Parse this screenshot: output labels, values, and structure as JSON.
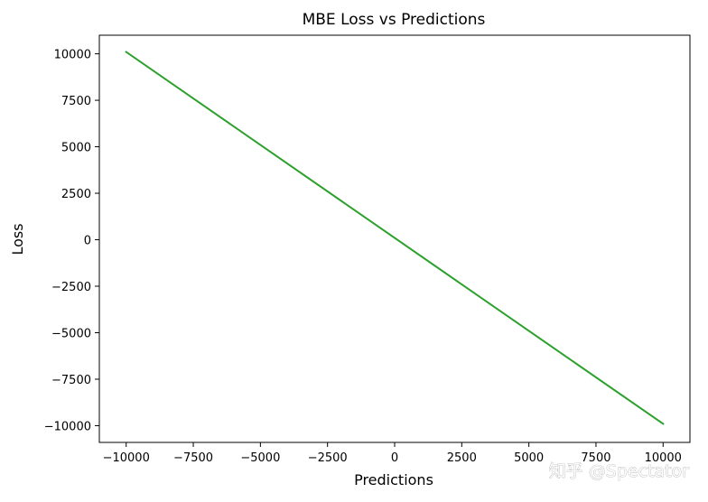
{
  "chart_data": {
    "type": "line",
    "title": "MBE Loss vs Predictions",
    "xlabel": "Predictions",
    "ylabel": "Loss",
    "xlim": [
      -11000,
      11000
    ],
    "ylim": [
      -10900,
      11000
    ],
    "xticks": [
      -10000,
      -7500,
      -5000,
      -2500,
      0,
      2500,
      5000,
      7500,
      10000
    ],
    "yticks": [
      10000,
      7500,
      5000,
      2500,
      0,
      -2500,
      -5000,
      -7500,
      -10000
    ],
    "xtick_labels": [
      "−10000",
      "−7500",
      "−5000",
      "−2500",
      "0",
      "2500",
      "5000",
      "7500",
      "10000"
    ],
    "ytick_labels": [
      "10000",
      "7500",
      "5000",
      "2500",
      "0",
      "−2500",
      "−5000",
      "−7500",
      "−10000"
    ],
    "grid": false,
    "series": [
      {
        "color": "#2ca02c",
        "x": [
          -10000,
          10000
        ],
        "y": [
          10100,
          -9900
        ]
      }
    ]
  },
  "watermark": "知乎 @Spectator"
}
